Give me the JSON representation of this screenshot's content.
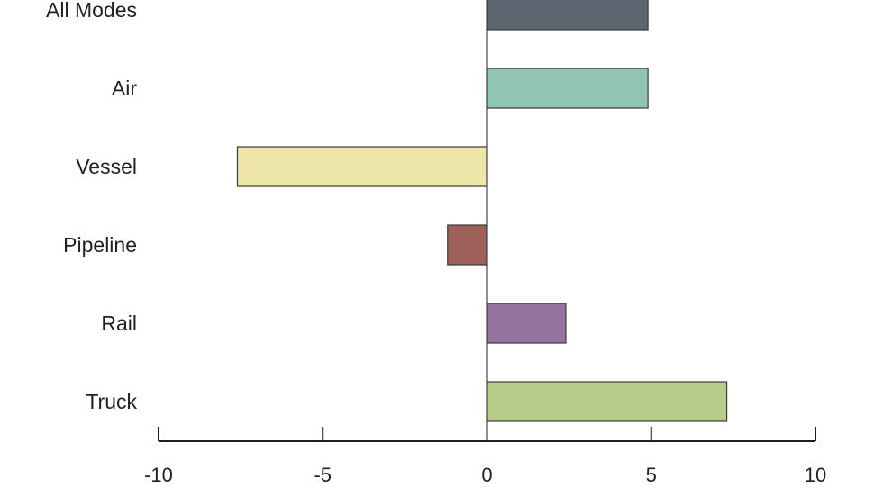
{
  "chart_data": {
    "type": "bar",
    "orientation": "horizontal",
    "categories": [
      "All Modes",
      "Air",
      "Vessel",
      "Pipeline",
      "Rail",
      "Truck"
    ],
    "values": [
      4.9,
      4.9,
      -7.6,
      -1.2,
      2.4,
      7.3
    ],
    "colors": [
      "#5d6670",
      "#92c4b6",
      "#ede6a8",
      "#a0605a",
      "#9473a1",
      "#b7cc8b"
    ],
    "xlim": [
      -10,
      10
    ],
    "xticks": [
      -10,
      -5,
      0,
      5,
      10
    ],
    "xtick_labels": [
      "-10",
      "-5",
      "0",
      "5",
      "10"
    ],
    "title": "",
    "xlabel": "",
    "ylabel": "",
    "grid": false,
    "legend": "none"
  }
}
